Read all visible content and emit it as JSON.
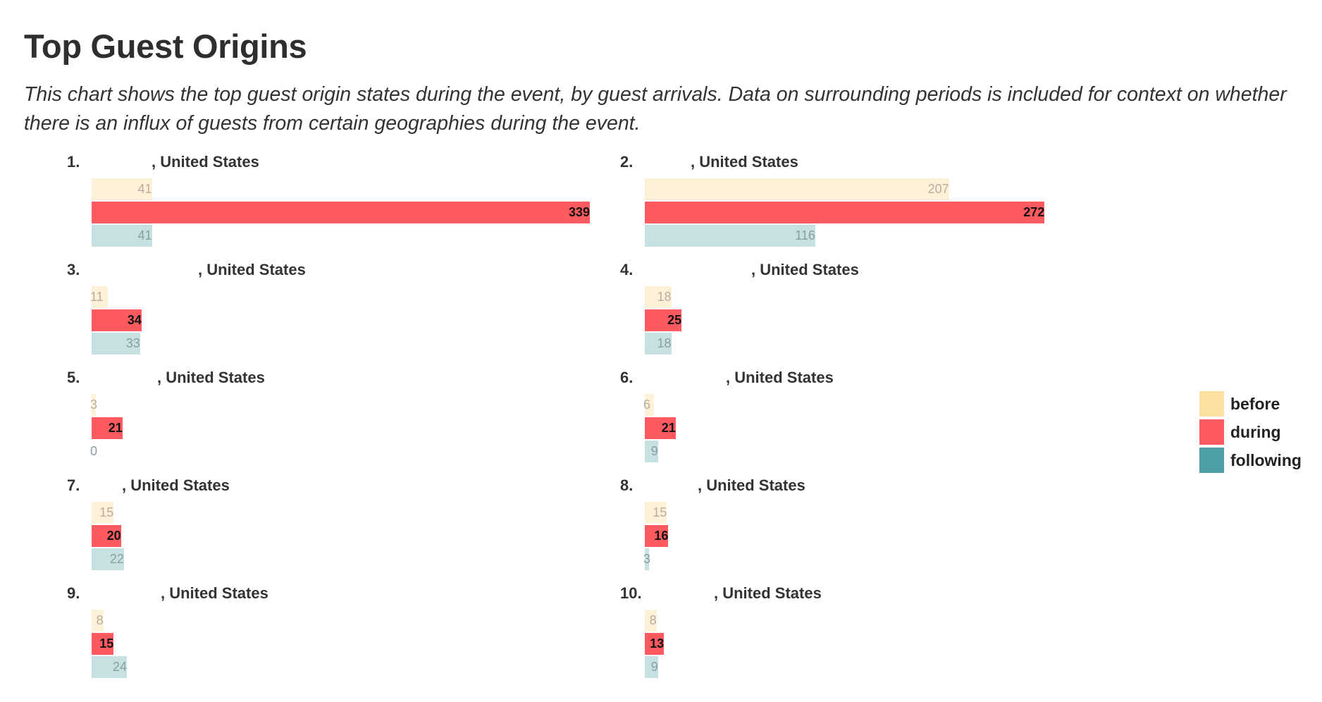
{
  "title": "Top Guest Origins",
  "subtitle": "This chart shows the top guest origin states during the event, by guest arrivals. Data on surrounding periods is included for context on whether there is an influx of guests from certain geographies during the event.",
  "colors": {
    "before": "#fde1a2",
    "during": "#ff5a5f",
    "following": "#4c9fa6",
    "before_fill": "#fdf1d8",
    "following_fill": "#c7e0e1",
    "before_text": "#b8ada0",
    "following_text": "#8a9ea0",
    "during_text": "#111111"
  },
  "legend": [
    {
      "key": "before",
      "label": "before"
    },
    {
      "key": "during",
      "label": "during"
    },
    {
      "key": "following",
      "label": "following"
    }
  ],
  "chart_data": {
    "type": "bar",
    "orientation": "horizontal",
    "title": "Top Guest Origins",
    "series_names": [
      "before",
      "during",
      "following"
    ],
    "max_value": 339,
    "legend_position": "right",
    "grid": false,
    "items": [
      {
        "rank": "1.",
        "place": ", United States",
        "before": 41,
        "during": 339,
        "following": 41
      },
      {
        "rank": "2.",
        "place": ", United States",
        "before": 207,
        "during": 272,
        "following": 116
      },
      {
        "rank": "3.",
        "place": ", United States",
        "before": 11,
        "during": 34,
        "following": 33
      },
      {
        "rank": "4.",
        "place": ", United States",
        "before": 18,
        "during": 25,
        "following": 18
      },
      {
        "rank": "5.",
        "place": ", United States",
        "before": 3,
        "during": 21,
        "following": 0
      },
      {
        "rank": "6.",
        "place": ", United States",
        "before": 6,
        "during": 21,
        "following": 9
      },
      {
        "rank": "7.",
        "place": ", United States",
        "before": 15,
        "during": 20,
        "following": 22
      },
      {
        "rank": "8.",
        "place": ", United States",
        "before": 15,
        "during": 16,
        "following": 3
      },
      {
        "rank": "9.",
        "place": ", United States",
        "before": 8,
        "during": 15,
        "following": 24
      },
      {
        "rank": "10.",
        "place": ", United States",
        "before": 8,
        "during": 13,
        "following": 9
      }
    ]
  }
}
